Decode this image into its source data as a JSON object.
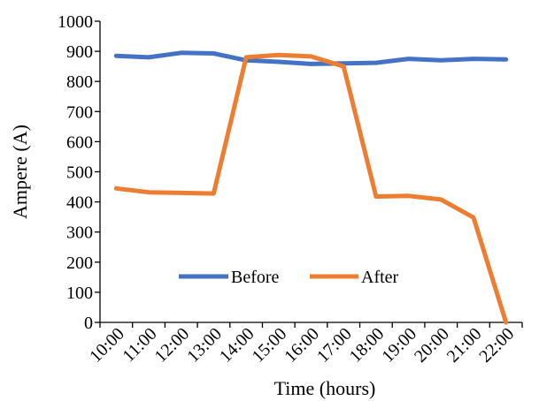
{
  "chart_data": {
    "type": "line",
    "categories": [
      "10:00",
      "11:00",
      "12:00",
      "13:00",
      "14:00",
      "15:00",
      "16:00",
      "17:00",
      "18:00",
      "19:00",
      "20:00",
      "21:00",
      "22:00"
    ],
    "series": [
      {
        "name": "Before",
        "color": "#4472C4",
        "values": [
          885,
          880,
          895,
          893,
          870,
          865,
          858,
          860,
          862,
          875,
          870,
          875,
          873
        ]
      },
      {
        "name": "After",
        "color": "#ED7D31",
        "values": [
          445,
          432,
          430,
          428,
          880,
          888,
          883,
          850,
          418,
          420,
          408,
          348,
          0
        ]
      }
    ],
    "title": "",
    "xlabel": "Time (hours)",
    "ylabel": "Ampere (A)",
    "ylim": [
      0,
      1000
    ],
    "yticks": [
      0,
      100,
      200,
      300,
      400,
      500,
      600,
      700,
      800,
      900,
      1000
    ],
    "grid": false,
    "legend_position": "bottom-center inside plot"
  }
}
